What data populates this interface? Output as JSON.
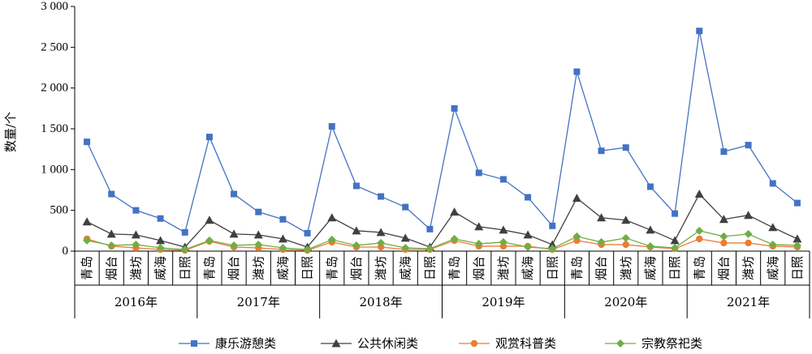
{
  "chart_data": {
    "type": "line",
    "ylabel": "数量/个",
    "ylim": [
      0,
      3000
    ],
    "yticks": [
      0,
      500,
      1000,
      1500,
      2000,
      2500,
      3000
    ],
    "ytick_labels": [
      "0",
      "500",
      "1 000",
      "1 500",
      "2 000",
      "2 500",
      "3 000"
    ],
    "grid": false,
    "cities": [
      "青岛",
      "烟台",
      "潍坊",
      "威海",
      "日照"
    ],
    "years": [
      "2016年",
      "2017年",
      "2018年",
      "2019年",
      "2020年",
      "2021年"
    ],
    "legend_position": "bottom",
    "series": [
      {
        "name": "康乐游憩类",
        "color": "#4472C4",
        "marker": "square",
        "values": [
          1340,
          700,
          500,
          400,
          230,
          1400,
          700,
          480,
          390,
          220,
          1530,
          800,
          670,
          540,
          270,
          1750,
          960,
          880,
          660,
          310,
          2200,
          1230,
          1270,
          790,
          460,
          2700,
          1220,
          1300,
          830,
          590
        ]
      },
      {
        "name": "公共休闲类",
        "color": "#404040",
        "marker": "triangle",
        "values": [
          360,
          210,
          200,
          130,
          50,
          380,
          210,
          200,
          150,
          50,
          410,
          250,
          230,
          160,
          50,
          480,
          300,
          260,
          200,
          80,
          650,
          410,
          380,
          260,
          130,
          700,
          390,
          440,
          290,
          150
        ]
      },
      {
        "name": "观赏科普类",
        "color": "#ED7D31",
        "marker": "circle",
        "values": [
          150,
          60,
          40,
          20,
          10,
          120,
          50,
          40,
          20,
          10,
          110,
          50,
          50,
          20,
          20,
          130,
          60,
          60,
          60,
          20,
          130,
          80,
          80,
          50,
          30,
          150,
          100,
          100,
          60,
          50
        ]
      },
      {
        "name": "宗教祭祀类",
        "color": "#70AD47",
        "marker": "diamond",
        "values": [
          130,
          70,
          80,
          40,
          20,
          130,
          70,
          80,
          40,
          20,
          140,
          70,
          100,
          40,
          30,
          150,
          90,
          110,
          50,
          30,
          180,
          110,
          160,
          60,
          40,
          250,
          180,
          210,
          80,
          70
        ]
      }
    ]
  }
}
